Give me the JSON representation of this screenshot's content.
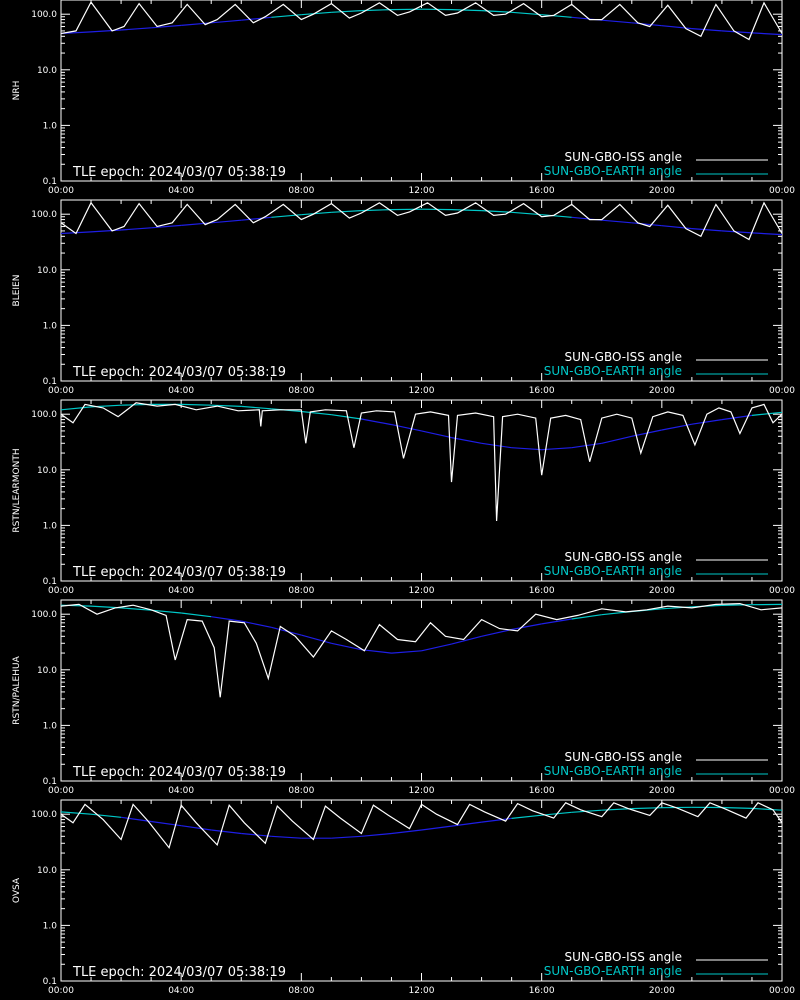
{
  "figure": {
    "background": "#000000",
    "foreground": "#ffffff",
    "legend": {
      "iss_label": "SUN-GBO-ISS angle",
      "earth_label": "SUN-GBO-EARTH angle",
      "iss_color": "#ffffff",
      "earth_color": "#00c8c8",
      "earth_below_horizon_color": "#1e1ee6",
      "placement": "bottom-right"
    },
    "epoch_text": "TLE epoch: 2024/03/07 05:38:19"
  },
  "chart_data": [
    {
      "type": "line",
      "ylabel": "NRH",
      "yscale": "log",
      "ylim": [
        0.1,
        180
      ],
      "yticks": [
        "100.0",
        "10.0",
        "1.0",
        "0.1"
      ],
      "xlim": [
        "00:00",
        "24:00"
      ],
      "xticks": [
        "00:00",
        "04:00",
        "08:00",
        "12:00",
        "16:00",
        "20:00",
        "00:00"
      ],
      "series": [
        {
          "name": "SUN-GBO-ISS angle",
          "x_hours": [
            0.0,
            0.5,
            1.0,
            1.7,
            2.1,
            2.6,
            3.2,
            3.7,
            4.2,
            4.8,
            5.2,
            5.8,
            6.4,
            6.8,
            7.4,
            8.0,
            8.4,
            9.0,
            9.6,
            10.0,
            10.6,
            11.2,
            11.6,
            12.2,
            12.8,
            13.2,
            13.8,
            14.4,
            14.8,
            15.4,
            16.0,
            16.4,
            17.0,
            17.6,
            18.0,
            18.6,
            19.2,
            19.6,
            20.2,
            20.8,
            21.3,
            21.8,
            22.4,
            22.9,
            23.4,
            24.0
          ],
          "values": [
            45,
            50,
            165,
            50,
            60,
            155,
            60,
            70,
            150,
            65,
            80,
            150,
            70,
            90,
            150,
            80,
            100,
            155,
            85,
            105,
            160,
            95,
            110,
            160,
            95,
            105,
            160,
            95,
            100,
            155,
            90,
            95,
            150,
            80,
            80,
            150,
            70,
            60,
            145,
            55,
            40,
            150,
            50,
            35,
            160,
            45
          ]
        },
        {
          "name": "SUN-GBO-EARTH angle",
          "x_hours": [
            0,
            1,
            2,
            3,
            4,
            5,
            6,
            7,
            8,
            9,
            10,
            11,
            12,
            13,
            14,
            15,
            16,
            17,
            18,
            19,
            20,
            21,
            22,
            23,
            24
          ],
          "values": [
            45,
            48,
            52,
            57,
            63,
            70,
            78,
            88,
            98,
            108,
            116,
            121,
            123,
            121,
            116,
            108,
            98,
            88,
            78,
            70,
            62,
            55,
            50,
            46,
            43
          ],
          "above_horizon_threshold": 90
        }
      ]
    },
    {
      "type": "line",
      "ylabel": "BLEIEN",
      "yscale": "log",
      "ylim": [
        0.1,
        180
      ],
      "yticks": [
        "100.0",
        "10.0",
        "1.0",
        "0.1"
      ],
      "xlim": [
        "00:00",
        "24:00"
      ],
      "xticks": [
        "00:00",
        "04:00",
        "08:00",
        "12:00",
        "16:00",
        "20:00",
        "00:00"
      ],
      "series": [
        {
          "name": "SUN-GBO-ISS angle",
          "x_hours": [
            0.0,
            0.5,
            1.0,
            1.7,
            2.1,
            2.6,
            3.2,
            3.7,
            4.2,
            4.8,
            5.2,
            5.8,
            6.4,
            6.8,
            7.4,
            8.0,
            8.4,
            9.0,
            9.6,
            10.0,
            10.6,
            11.2,
            11.6,
            12.2,
            12.8,
            13.2,
            13.8,
            14.4,
            14.8,
            15.4,
            16.0,
            16.4,
            17.0,
            17.6,
            18.0,
            18.6,
            19.2,
            19.6,
            20.2,
            20.8,
            21.3,
            21.8,
            22.4,
            22.9,
            23.4,
            24.0
          ],
          "values": [
            70,
            45,
            160,
            50,
            60,
            155,
            60,
            70,
            150,
            65,
            80,
            150,
            70,
            90,
            150,
            80,
            100,
            155,
            85,
            105,
            160,
            95,
            110,
            160,
            95,
            105,
            160,
            95,
            100,
            155,
            90,
            95,
            150,
            80,
            80,
            150,
            70,
            60,
            145,
            55,
            40,
            150,
            50,
            35,
            160,
            45
          ]
        },
        {
          "name": "SUN-GBO-EARTH angle",
          "x_hours": [
            0,
            1,
            2,
            3,
            4,
            5,
            6,
            7,
            8,
            9,
            10,
            11,
            12,
            13,
            14,
            15,
            16,
            17,
            18,
            19,
            20,
            21,
            22,
            23,
            24
          ],
          "values": [
            45,
            48,
            52,
            57,
            63,
            70,
            78,
            88,
            98,
            108,
            116,
            121,
            123,
            121,
            116,
            108,
            98,
            88,
            78,
            70,
            62,
            55,
            50,
            46,
            43
          ],
          "above_horizon_threshold": 90
        }
      ]
    },
    {
      "type": "line",
      "ylabel": "RSTN/LEARMONTH",
      "yscale": "log",
      "ylim": [
        0.1,
        180
      ],
      "yticks": [
        "100.0",
        "10.0",
        "1.0",
        "0.1"
      ],
      "xlim": [
        "00:00",
        "24:00"
      ],
      "xticks": [
        "00:00",
        "04:00",
        "08:00",
        "12:00",
        "16:00",
        "20:00",
        "00:00"
      ],
      "series": [
        {
          "name": "SUN-GBO-ISS angle",
          "x_hours": [
            0.0,
            0.4,
            0.8,
            1.4,
            1.9,
            2.5,
            3.2,
            3.8,
            4.5,
            5.2,
            5.9,
            6.6,
            6.65,
            6.7,
            7.3,
            8.0,
            8.15,
            8.3,
            8.8,
            9.5,
            9.75,
            10.0,
            10.5,
            11.1,
            11.4,
            11.8,
            12.3,
            12.9,
            13.0,
            13.2,
            13.8,
            14.4,
            14.5,
            14.7,
            15.2,
            15.8,
            16.0,
            16.3,
            16.8,
            17.3,
            17.6,
            18.0,
            18.5,
            19.0,
            19.3,
            19.7,
            20.2,
            20.7,
            21.1,
            21.5,
            21.9,
            22.3,
            22.6,
            23.0,
            23.4,
            23.7,
            24.0
          ],
          "values": [
            100,
            70,
            150,
            130,
            90,
            160,
            140,
            150,
            120,
            140,
            115,
            120,
            60,
            115,
            120,
            120,
            30,
            110,
            120,
            115,
            25,
            105,
            115,
            110,
            16,
            100,
            110,
            95,
            6,
            95,
            105,
            90,
            1.2,
            90,
            100,
            85,
            8,
            85,
            95,
            80,
            14,
            85,
            100,
            85,
            20,
            90,
            110,
            95,
            28,
            100,
            130,
            110,
            45,
            130,
            150,
            70,
            100
          ]
        },
        {
          "name": "SUN-GBO-EARTH angle",
          "x_hours": [
            0,
            1,
            2,
            3,
            4,
            5,
            6,
            7,
            8,
            9,
            10,
            11,
            12,
            13,
            14,
            15,
            16,
            17,
            18,
            19,
            20,
            21,
            22,
            23,
            24
          ],
          "values": [
            120,
            135,
            145,
            150,
            150,
            145,
            138,
            125,
            112,
            98,
            82,
            65,
            50,
            38,
            30,
            25,
            23,
            25,
            30,
            40,
            52,
            66,
            80,
            95,
            108
          ],
          "above_horizon_threshold": 90
        }
      ]
    },
    {
      "type": "line",
      "ylabel": "RSTN/PALEHUA",
      "yscale": "log",
      "ylim": [
        0.1,
        180
      ],
      "yticks": [
        "100.0",
        "10.0",
        "1.0",
        "0.1"
      ],
      "xlim": [
        "00:00",
        "24:00"
      ],
      "xticks": [
        "00:00",
        "04:00",
        "08:00",
        "12:00",
        "16:00",
        "20:00",
        "00:00"
      ],
      "series": [
        {
          "name": "SUN-GBO-ISS angle",
          "x_hours": [
            0.0,
            0.6,
            1.2,
            1.8,
            2.4,
            3.0,
            3.5,
            3.8,
            4.2,
            4.7,
            5.1,
            5.3,
            5.6,
            6.1,
            6.5,
            6.9,
            7.3,
            7.8,
            8.4,
            9.0,
            9.5,
            10.1,
            10.6,
            11.2,
            11.8,
            12.3,
            12.8,
            13.4,
            14.0,
            14.6,
            15.2,
            15.8,
            16.5,
            17.2,
            18.0,
            18.8,
            19.5,
            20.2,
            21.0,
            21.8,
            22.6,
            23.3,
            24.0
          ],
          "values": [
            140,
            150,
            100,
            130,
            145,
            120,
            95,
            15,
            80,
            75,
            25,
            3.2,
            75,
            70,
            30,
            7,
            60,
            40,
            17,
            50,
            35,
            22,
            65,
            35,
            32,
            70,
            40,
            35,
            80,
            55,
            50,
            100,
            80,
            95,
            125,
            110,
            120,
            140,
            130,
            150,
            155,
            120,
            130
          ]
        },
        {
          "name": "SUN-GBO-EARTH angle",
          "x_hours": [
            0,
            1,
            2,
            3,
            4,
            5,
            6,
            7,
            8,
            9,
            10,
            11,
            12,
            13,
            14,
            15,
            16,
            17,
            18,
            19,
            20,
            21,
            22,
            23,
            24
          ],
          "values": [
            145,
            140,
            130,
            118,
            105,
            90,
            75,
            58,
            42,
            30,
            23,
            20,
            22,
            29,
            40,
            53,
            67,
            82,
            98,
            112,
            125,
            136,
            144,
            148,
            150
          ],
          "above_horizon_threshold": 90
        }
      ]
    },
    {
      "type": "line",
      "ylabel": "OVSA",
      "yscale": "log",
      "ylim": [
        0.1,
        180
      ],
      "yticks": [
        "100.0",
        "10.0",
        "1.0",
        "0.1"
      ],
      "xlim": [
        "00:00",
        "24:00"
      ],
      "xticks": [
        "00:00",
        "04:00",
        "08:00",
        "12:00",
        "16:00",
        "20:00",
        "00:00"
      ],
      "series": [
        {
          "name": "SUN-GBO-ISS angle",
          "x_hours": [
            0.0,
            0.4,
            0.8,
            1.4,
            2.0,
            2.4,
            2.9,
            3.6,
            4.0,
            4.5,
            5.2,
            5.6,
            6.1,
            6.8,
            7.2,
            7.7,
            8.4,
            8.8,
            9.3,
            10.0,
            10.4,
            10.9,
            11.6,
            12.0,
            12.5,
            13.2,
            13.6,
            14.1,
            14.8,
            15.2,
            15.7,
            16.4,
            16.8,
            17.3,
            18.0,
            18.4,
            18.9,
            19.6,
            20.0,
            20.5,
            21.2,
            21.6,
            22.1,
            22.8,
            23.2,
            23.7,
            24.0
          ],
          "values": [
            100,
            70,
            150,
            80,
            35,
            150,
            75,
            25,
            145,
            70,
            28,
            145,
            70,
            30,
            140,
            75,
            35,
            140,
            85,
            45,
            145,
            95,
            55,
            150,
            100,
            65,
            150,
            110,
            75,
            155,
            115,
            85,
            160,
            120,
            90,
            160,
            125,
            95,
            160,
            130,
            90,
            160,
            125,
            85,
            160,
            120,
            70
          ]
        },
        {
          "name": "SUN-GBO-EARTH angle",
          "x_hours": [
            0,
            1,
            2,
            3,
            4,
            5,
            6,
            7,
            8,
            9,
            10,
            11,
            12,
            13,
            14,
            15,
            16,
            17,
            18,
            19,
            20,
            21,
            22,
            23,
            24
          ],
          "values": [
            110,
            100,
            88,
            74,
            62,
            52,
            45,
            40,
            37,
            37,
            40,
            45,
            52,
            61,
            72,
            84,
            96,
            108,
            118,
            126,
            131,
            133,
            132,
            127,
            118
          ],
          "above_horizon_threshold": 90
        }
      ]
    }
  ]
}
